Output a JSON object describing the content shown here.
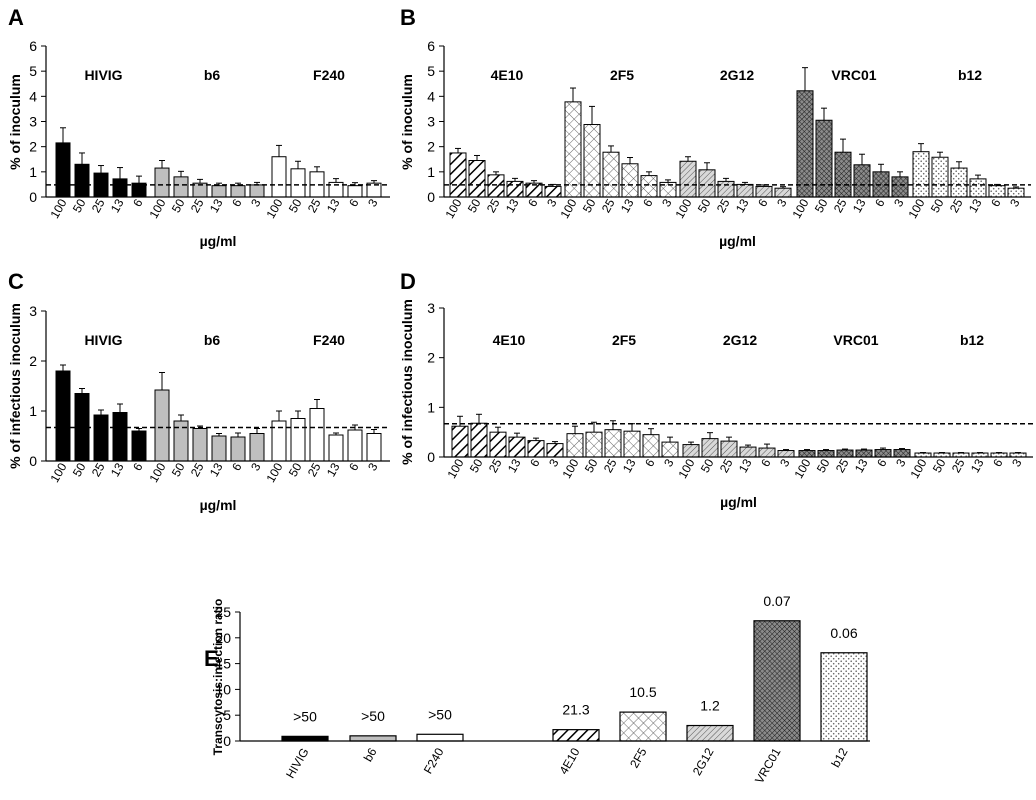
{
  "colors": {
    "black": "#000000",
    "gray": "#bfbfbf",
    "white": "#ffffff"
  },
  "chart_data": [
    {
      "id": "A",
      "type": "bar",
      "panel_label": "A",
      "ylabel": "% of inoculum",
      "xlabel": "µg/ml",
      "ylim": [
        0,
        6
      ],
      "yticks": [
        0,
        1,
        2,
        3,
        4,
        5,
        6
      ],
      "reference_line": 0.48,
      "groups": [
        {
          "name": "HIVIG",
          "pattern": "black",
          "x": [
            "100",
            "50",
            "25",
            "13",
            "6"
          ],
          "values": [
            2.15,
            1.3,
            0.95,
            0.72,
            0.55
          ],
          "errors": [
            0.6,
            0.45,
            0.3,
            0.45,
            0.28
          ]
        },
        {
          "name": "b6",
          "pattern": "gray",
          "x": [
            "100",
            "50",
            "25",
            "13",
            "6",
            "3"
          ],
          "values": [
            1.15,
            0.8,
            0.55,
            0.45,
            0.45,
            0.48
          ],
          "errors": [
            0.3,
            0.22,
            0.15,
            0.1,
            0.1,
            0.1
          ]
        },
        {
          "name": "F240",
          "pattern": "white",
          "x": [
            "100",
            "50",
            "25",
            "13",
            "6",
            "3"
          ],
          "values": [
            1.6,
            1.12,
            1.0,
            0.58,
            0.45,
            0.55
          ],
          "errors": [
            0.45,
            0.3,
            0.2,
            0.15,
            0.12,
            0.1
          ]
        }
      ]
    },
    {
      "id": "B",
      "type": "bar",
      "panel_label": "B",
      "ylabel": "% of inoculum",
      "xlabel": "µg/ml",
      "ylim": [
        0,
        6
      ],
      "yticks": [
        0,
        1,
        2,
        3,
        4,
        5,
        6
      ],
      "reference_line": 0.48,
      "groups": [
        {
          "name": "4E10",
          "pattern": "diagonal",
          "x": [
            "100",
            "50",
            "25",
            "13",
            "6",
            "3"
          ],
          "values": [
            1.75,
            1.45,
            0.88,
            0.62,
            0.55,
            0.42
          ],
          "errors": [
            0.18,
            0.2,
            0.12,
            0.12,
            0.1,
            0.08
          ]
        },
        {
          "name": "2F5",
          "pattern": "crosshatch",
          "x": [
            "100",
            "50",
            "25",
            "13",
            "6",
            "3"
          ],
          "values": [
            3.78,
            2.88,
            1.78,
            1.32,
            0.85,
            0.58
          ],
          "errors": [
            0.55,
            0.72,
            0.25,
            0.25,
            0.15,
            0.1
          ]
        },
        {
          "name": "2G12",
          "pattern": "fine-diagonal",
          "x": [
            "100",
            "50",
            "25",
            "13",
            "6",
            "3"
          ],
          "values": [
            1.42,
            1.08,
            0.62,
            0.5,
            0.42,
            0.35
          ],
          "errors": [
            0.18,
            0.28,
            0.12,
            0.08,
            0.06,
            0.06
          ]
        },
        {
          "name": "VRC01",
          "pattern": "dense-crosshatch",
          "x": [
            "100",
            "50",
            "25",
            "13",
            "6",
            "3"
          ],
          "values": [
            4.22,
            3.05,
            1.78,
            1.28,
            1.0,
            0.8
          ],
          "errors": [
            0.92,
            0.48,
            0.52,
            0.42,
            0.3,
            0.2
          ]
        },
        {
          "name": "b12",
          "pattern": "dots",
          "x": [
            "100",
            "50",
            "25",
            "13",
            "6",
            "3"
          ],
          "values": [
            1.8,
            1.58,
            1.15,
            0.72,
            0.45,
            0.35
          ],
          "errors": [
            0.32,
            0.2,
            0.25,
            0.15,
            0.05,
            0.05
          ]
        }
      ]
    },
    {
      "id": "C",
      "type": "bar",
      "panel_label": "C",
      "ylabel": "% of infectious inoculum",
      "xlabel": "µg/ml",
      "ylim": [
        0,
        3
      ],
      "yticks": [
        0,
        1,
        2,
        3
      ],
      "reference_line": 0.67,
      "groups": [
        {
          "name": "HIVIG",
          "pattern": "black",
          "x": [
            "100",
            "50",
            "25",
            "13",
            "6"
          ],
          "values": [
            1.8,
            1.35,
            0.92,
            0.97,
            0.6
          ],
          "errors": [
            0.12,
            0.1,
            0.1,
            0.17,
            0.05
          ]
        },
        {
          "name": "b6",
          "pattern": "gray",
          "x": [
            "100",
            "50",
            "25",
            "13",
            "6",
            "3"
          ],
          "values": [
            1.42,
            0.8,
            0.65,
            0.5,
            0.48,
            0.55
          ],
          "errors": [
            0.35,
            0.12,
            0.05,
            0.05,
            0.08,
            0.1
          ]
        },
        {
          "name": "F240",
          "pattern": "white",
          "x": [
            "100",
            "50",
            "25",
            "13",
            "6",
            "3"
          ],
          "values": [
            0.8,
            0.85,
            1.05,
            0.52,
            0.62,
            0.55
          ],
          "errors": [
            0.2,
            0.15,
            0.18,
            0.04,
            0.1,
            0.08
          ]
        }
      ]
    },
    {
      "id": "D",
      "type": "bar",
      "panel_label": "D",
      "ylabel": "% of infectious inoculum",
      "xlabel": "µg/ml",
      "ylim": [
        0,
        3
      ],
      "yticks": [
        0,
        1,
        2,
        3
      ],
      "reference_line": 0.67,
      "groups": [
        {
          "name": "4E10",
          "pattern": "diagonal",
          "x": [
            "100",
            "50",
            "25",
            "13",
            "6",
            "3"
          ],
          "values": [
            0.62,
            0.68,
            0.5,
            0.4,
            0.33,
            0.27
          ],
          "errors": [
            0.2,
            0.18,
            0.1,
            0.08,
            0.05,
            0.04
          ]
        },
        {
          "name": "2F5",
          "pattern": "crosshatch",
          "x": [
            "100",
            "50",
            "25",
            "13",
            "6",
            "3"
          ],
          "values": [
            0.47,
            0.5,
            0.55,
            0.52,
            0.45,
            0.3
          ],
          "errors": [
            0.15,
            0.2,
            0.18,
            0.15,
            0.12,
            0.1
          ]
        },
        {
          "name": "2G12",
          "pattern": "fine-diagonal",
          "x": [
            "100",
            "50",
            "25",
            "13",
            "6",
            "3"
          ],
          "values": [
            0.25,
            0.37,
            0.32,
            0.2,
            0.18,
            0.13
          ],
          "errors": [
            0.05,
            0.12,
            0.08,
            0.04,
            0.08,
            0.02
          ]
        },
        {
          "name": "VRC01",
          "pattern": "dense-crosshatch",
          "x": [
            "100",
            "50",
            "25",
            "13",
            "6",
            "3"
          ],
          "values": [
            0.13,
            0.13,
            0.14,
            0.14,
            0.15,
            0.15
          ],
          "errors": [
            0.02,
            0.02,
            0.02,
            0.02,
            0.03,
            0.02
          ]
        },
        {
          "name": "b12",
          "pattern": "dots",
          "x": [
            "100",
            "50",
            "25",
            "13",
            "6",
            "3"
          ],
          "values": [
            0.08,
            0.08,
            0.08,
            0.08,
            0.08,
            0.08
          ],
          "errors": [
            0.01,
            0.01,
            0.01,
            0.01,
            0.01,
            0.01
          ]
        }
      ]
    },
    {
      "id": "E",
      "type": "bar",
      "panel_label": "E",
      "ylabel": "Transcytosis:infection ratio",
      "xlabel": "",
      "ylim": [
        0,
        25
      ],
      "yticks": [
        0,
        5,
        10,
        15,
        20,
        25
      ],
      "categories": [
        "HIVIG",
        "b6",
        "F240",
        "4E10",
        "2F5",
        "2G12",
        "VRC01",
        "b12"
      ],
      "patterns": [
        "black",
        "gray",
        "white",
        "diagonal",
        "crosshatch",
        "fine-diagonal",
        "dense-crosshatch",
        "dots"
      ],
      "values": [
        0.9,
        1.0,
        1.3,
        2.2,
        5.6,
        3.0,
        23.3,
        17.1
      ],
      "data_labels": [
        ">50",
        ">50",
        ">50",
        "21.3",
        "10.5",
        "1.2",
        "0.07",
        "0.06"
      ]
    }
  ]
}
